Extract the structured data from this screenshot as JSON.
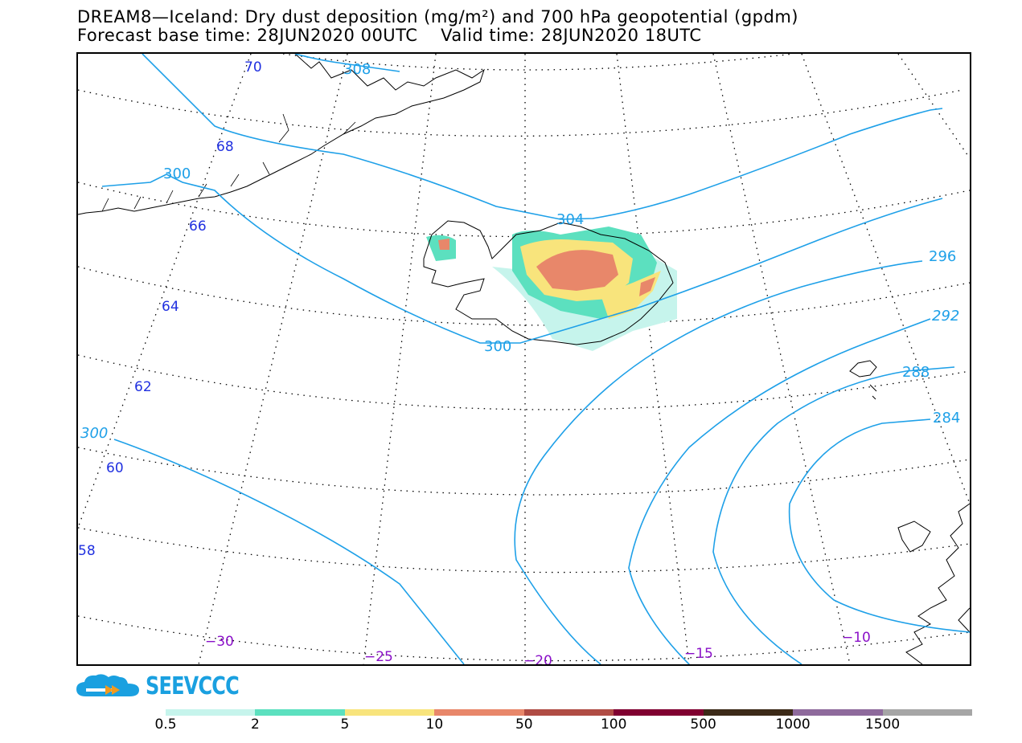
{
  "header": {
    "title_line1": "DREAM8—Iceland: Dry dust deposition (mg/m²) and 700 hPa geopotential (gpdm)",
    "title_line2": "Forecast base time: 28JUN2020 00UTC    Valid time: 28JUN2020 18UTC"
  },
  "map": {
    "contour_color": "#1ea0e8",
    "graticule": {
      "lat_labels": [
        "70",
        "68",
        "66",
        "64",
        "62",
        "60",
        "58"
      ],
      "lon_labels": [
        "−30",
        "−25",
        "−20",
        "−15",
        "−10"
      ],
      "lat_label_color": "#2030e0",
      "lon_label_color": "#8a10c8"
    },
    "contour_labels": [
      "308",
      "300",
      "304",
      "300",
      "300",
      "296",
      "292",
      "288",
      "284"
    ]
  },
  "logo": {
    "text": "SEEVCCC",
    "color": "#1aa0e0",
    "icon": "cloud-icon"
  },
  "colorbar": {
    "colors": [
      "#c6f4ec",
      "#5ce0bf",
      "#f8e47c",
      "#e8876a",
      "#b04c44",
      "#800030",
      "#3c2a18",
      "#8e6a9c",
      "#a6a6a6"
    ],
    "labels": [
      "0.5",
      "2",
      "5",
      "10",
      "50",
      "100",
      "500",
      "1000",
      "1500"
    ]
  }
}
